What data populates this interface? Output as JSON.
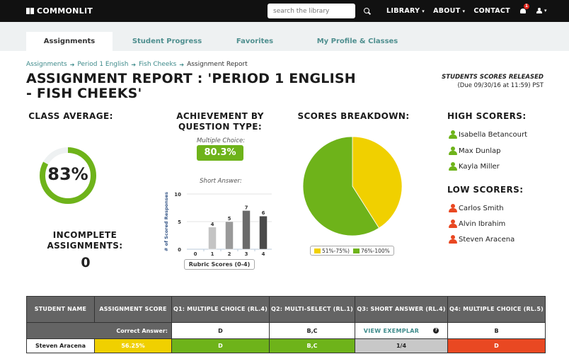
{
  "nav": {
    "logo": "COMMONLIT",
    "search_placeholder": "search the library",
    "links": [
      {
        "label": "LIBRARY",
        "dropdown": true
      },
      {
        "label": "ABOUT",
        "dropdown": true
      },
      {
        "label": "CONTACT",
        "dropdown": false
      }
    ],
    "notification_count": "1",
    "caret": "▾"
  },
  "tabs": [
    {
      "label": "Assignments",
      "active": true
    },
    {
      "label": "Student Progress",
      "active": false
    },
    {
      "label": "Favorites",
      "active": false
    },
    {
      "label": "My Profile & Classes",
      "active": false
    }
  ],
  "breadcrumb": {
    "items": [
      "Assignments",
      "Period 1 English",
      "Fish Cheeks"
    ],
    "current": "Assignment Report",
    "separator": "➔"
  },
  "header": {
    "title": "ASSIGNMENT REPORT : 'PERIOD 1 ENGLISH - FISH CHEEKS'",
    "released": "STUDENTS SCORES RELEASED",
    "due": "(Due 09/30/16 at 11:59) PST"
  },
  "class_average": {
    "heading": "CLASS AVERAGE:",
    "value": "83%",
    "percent": 83,
    "incomplete_heading": "INCOMPLETE ASSIGNMENTS:",
    "incomplete_value": "0"
  },
  "achievement": {
    "heading": "ACHIEVEMENT BY QUESTION TYPE:",
    "mc_label": "Multiple Choice:",
    "mc_value": "80.3%",
    "sa_label": "Short Answer:",
    "rubric_label": "Rubric Scores (0-4)"
  },
  "scores_breakdown": {
    "heading": "SCORES BREAKDOWN:"
  },
  "high_scorers": {
    "heading": "HIGH SCORERS:",
    "names": [
      "Isabella Betancourt",
      "Max Dunlap",
      "Kayla Miller"
    ]
  },
  "low_scorers": {
    "heading": "LOW SCORERS:",
    "names": [
      "Carlos Smith",
      "Alvin Ibrahim",
      "Steven Aracena"
    ]
  },
  "colors": {
    "green": "#6eb31a",
    "yellow": "#f0d000",
    "red": "#e94822",
    "gray_cell": "#c8c8c8",
    "header_gray": "#646464",
    "teal": "#3d8a8a"
  },
  "table": {
    "headers": [
      "STUDENT NAME",
      "ASSIGNMENT SCORE",
      "Q1: MULTIPLE CHOICE (RL.4)",
      "Q2: MULTI-SELECT (RL.1)",
      "Q3: SHORT ANSWER (RL.4)",
      "Q4: MULTIPLE CHOICE (RL.5)"
    ],
    "correct_answer_label": "Correct Answer:",
    "correct_answers": [
      "D",
      "B,C",
      "VIEW EXEMPLAR",
      "B"
    ],
    "rows": [
      {
        "name": "Steven Aracena",
        "score": "56.25%",
        "q1": "D",
        "q2": "B,C",
        "q3": "1/4",
        "q4": "D"
      }
    ]
  },
  "chart_data": [
    {
      "type": "bar",
      "title": "Short Answer:",
      "xlabel": "Rubric Scores (0-4)",
      "ylabel": "# of Scored Responses",
      "categories": [
        "0",
        "1",
        "2",
        "3",
        "4"
      ],
      "values": [
        0,
        4,
        5,
        7,
        6
      ],
      "ylim": [
        0,
        10
      ],
      "yticks": [
        0,
        5,
        10
      ],
      "grid": true,
      "bar_colors": [
        "#cccccc",
        "#c4c4c4",
        "#999999",
        "#6a6a6a",
        "#4a4a4a"
      ]
    },
    {
      "type": "pie",
      "title": "SCORES BREAKDOWN:",
      "categories": [
        "51%-75%)",
        "76%-100%"
      ],
      "values": [
        41,
        59
      ],
      "colors": [
        "#f0d000",
        "#6eb31a"
      ],
      "legend_position": "bottom"
    },
    {
      "type": "pie",
      "title": "CLASS AVERAGE:",
      "categories": [
        "score",
        "remaining"
      ],
      "values": [
        83,
        17
      ],
      "colors": [
        "#6eb31a",
        "#eef1f2"
      ]
    }
  ]
}
